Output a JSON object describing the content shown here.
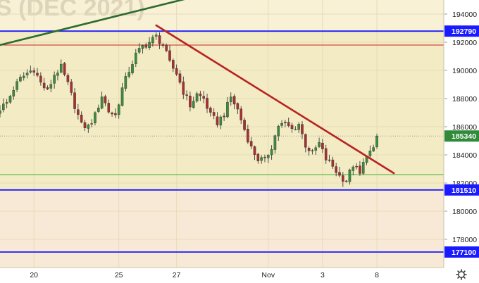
{
  "chart_data": {
    "type": "candlestick",
    "watermark": "S (DEC 2021)",
    "ylim": [
      176000,
      195000
    ],
    "y_ticks": [
      194000,
      192000,
      190000,
      188000,
      186000,
      184000,
      182000,
      180000,
      178000
    ],
    "x_ticks": [
      {
        "label": "20",
        "bar": 10
      },
      {
        "label": "25",
        "bar": 35
      },
      {
        "label": "27",
        "bar": 52
      },
      {
        "label": "Nov",
        "bar": 79
      },
      {
        "label": "3",
        "bar": 95
      },
      {
        "label": "8",
        "bar": 111
      }
    ],
    "bar_count": 116,
    "close_path": [
      [
        0,
        187300
      ],
      [
        2,
        187700
      ],
      [
        4,
        188700
      ],
      [
        6,
        189400
      ],
      [
        8,
        189800
      ],
      [
        10,
        190100
      ],
      [
        12,
        189100
      ],
      [
        14,
        188500
      ],
      [
        16,
        189700
      ],
      [
        18,
        190200
      ],
      [
        20,
        189000
      ],
      [
        22,
        187500
      ],
      [
        24,
        186100
      ],
      [
        26,
        186000
      ],
      [
        28,
        186800
      ],
      [
        30,
        188200
      ],
      [
        32,
        187100
      ],
      [
        34,
        186800
      ],
      [
        36,
        188700
      ],
      [
        38,
        190000
      ],
      [
        40,
        191100
      ],
      [
        42,
        191700
      ],
      [
        44,
        192000
      ],
      [
        46,
        192400
      ],
      [
        48,
        191800
      ],
      [
        50,
        190500
      ],
      [
        52,
        189800
      ],
      [
        54,
        188500
      ],
      [
        56,
        187500
      ],
      [
        58,
        188300
      ],
      [
        60,
        188000
      ],
      [
        62,
        186800
      ],
      [
        64,
        186300
      ],
      [
        66,
        186900
      ],
      [
        68,
        188100
      ],
      [
        70,
        187200
      ],
      [
        72,
        185800
      ],
      [
        74,
        184500
      ],
      [
        76,
        183700
      ],
      [
        78,
        183600
      ],
      [
        80,
        184600
      ],
      [
        82,
        186100
      ],
      [
        84,
        186200
      ],
      [
        86,
        185800
      ],
      [
        88,
        186200
      ],
      [
        90,
        184700
      ],
      [
        92,
        184100
      ],
      [
        94,
        184800
      ],
      [
        96,
        183700
      ],
      [
        98,
        183200
      ],
      [
        100,
        182500
      ],
      [
        102,
        182200
      ],
      [
        104,
        183300
      ],
      [
        106,
        182600
      ],
      [
        108,
        184100
      ],
      [
        110,
        184300
      ],
      [
        111,
        185340
      ]
    ],
    "horizontal_levels": [
      {
        "value": 192790,
        "color": "#1a1aff",
        "label": "192790"
      },
      {
        "value": 191800,
        "color": "#cc2222",
        "label": ""
      },
      {
        "value": 182600,
        "color": "#3ab03a",
        "label": ""
      },
      {
        "value": 181510,
        "color": "#1a1aff",
        "label": "181510"
      },
      {
        "value": 177100,
        "color": "#1a1aff",
        "label": "177100"
      }
    ],
    "current_price": {
      "value": 185340,
      "label": "185340"
    },
    "trendlines": [
      {
        "from": [
          46,
          193200
        ],
        "to": [
          116,
          182700
        ],
        "color": "#b82222"
      },
      {
        "from": [
          0,
          191800
        ],
        "to": [
          60,
          195400
        ],
        "color": "#2e6b2e"
      }
    ],
    "colors": {
      "up": "#3d8c3d",
      "down": "#a83030",
      "zone_main": "#f3ebc3",
      "zone_low": "#f8e9d6"
    }
  }
}
